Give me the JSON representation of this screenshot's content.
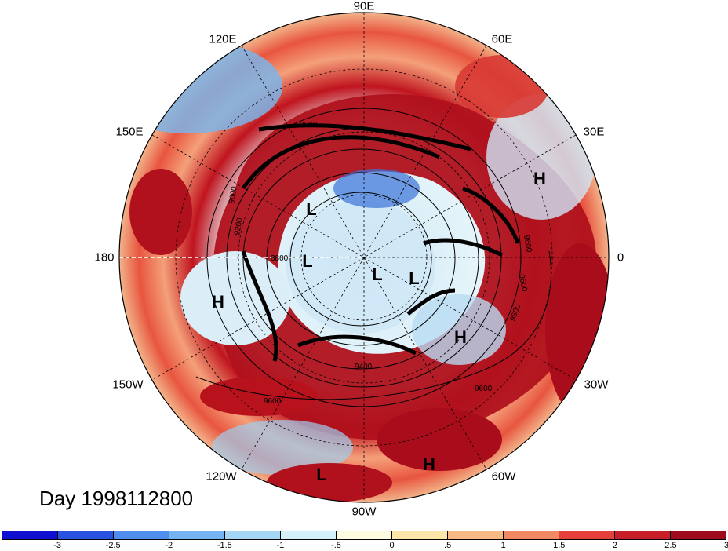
{
  "title": "Day 1998112800",
  "projection": "polar stereographic, north pole",
  "longitude_labels": [
    "90E",
    "60E",
    "30E",
    "0",
    "30W",
    "60W",
    "90W",
    "120W",
    "150W",
    "180",
    "150E",
    "120E"
  ],
  "pressure_systems": [
    {
      "type": "H",
      "location": "North Atlantic / Europe"
    },
    {
      "type": "H",
      "location": "Central Atlantic"
    },
    {
      "type": "H",
      "location": "Caribbean"
    },
    {
      "type": "H",
      "location": "North Pacific"
    },
    {
      "type": "L",
      "location": "Siberia"
    },
    {
      "type": "L",
      "location": "Arctic Ocean"
    },
    {
      "type": "L",
      "location": "Canadian Arctic"
    },
    {
      "type": "L",
      "location": "Greenland"
    },
    {
      "type": "L",
      "location": "Eastern Pacific"
    }
  ],
  "contour_labels": [
    "9600",
    "9600",
    "9600",
    "9600",
    "9500",
    "9400",
    "9200",
    "9000",
    "8800",
    "9600"
  ],
  "colorbar": {
    "tick_labels": [
      "-3",
      "-2.5",
      "-2",
      "-1.5",
      "-1",
      "-.5",
      "0",
      ".5",
      "1",
      "1.5",
      "2",
      "2.5",
      "3"
    ],
    "colors": [
      "#1010d0",
      "#2a52e0",
      "#4f8eec",
      "#75b4f0",
      "#a6d6f5",
      "#d4f1fa",
      "#fdfbe0",
      "#fbe5a9",
      "#f8ba84",
      "#f18a62",
      "#e6403e",
      "#c81e2a",
      "#9e0b1c"
    ]
  },
  "colors": {
    "warm": "#b8101c",
    "cool": "#4f8eec",
    "contour": "#000000"
  }
}
